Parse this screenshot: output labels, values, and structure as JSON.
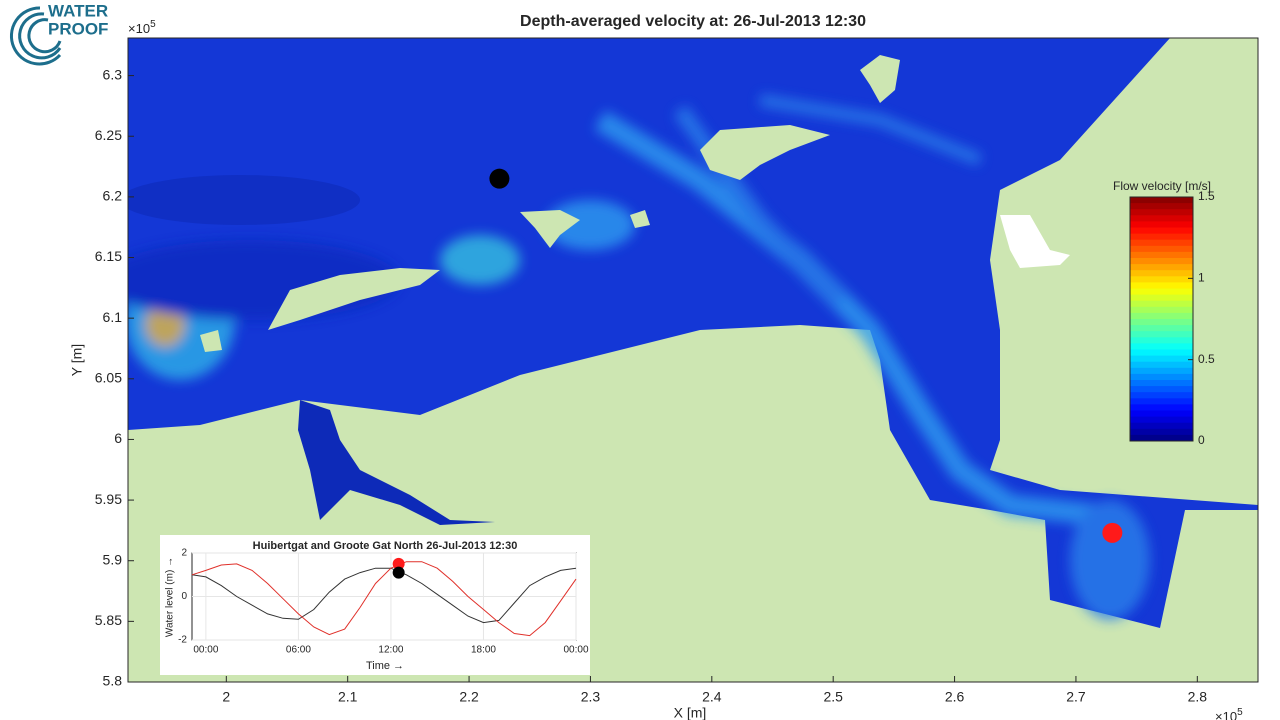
{
  "logo": {
    "line1": "WATER",
    "line2": "PROOF"
  },
  "chart_data": [
    {
      "type": "map",
      "title": "Depth-averaged velocity at: 26-Jul-2013 12:30",
      "xlabel": "X [m]",
      "ylabel": "Y [m]",
      "axis_exponent": {
        "base": "×10",
        "power": "5"
      },
      "xlim": [
        1.919,
        2.85
      ],
      "ylim": [
        5.8,
        6.331
      ],
      "xticks": [
        2,
        2.1,
        2.2,
        2.3,
        2.4,
        2.5,
        2.6,
        2.7,
        2.8
      ],
      "yticks": [
        5.8,
        5.85,
        5.9,
        5.95,
        6,
        6.05,
        6.1,
        6.15,
        6.2,
        6.25,
        6.3
      ],
      "series": [
        {
          "color": "#000000",
          "x": [
            2.225
          ],
          "y": [
            6.215
          ]
        },
        {
          "color": "#ff1a1a",
          "x": [
            2.73
          ],
          "y": [
            5.923
          ]
        }
      ],
      "colorbar": {
        "label": "Flow velocity [m/s]",
        "lim": [
          0,
          1.5
        ],
        "ticks": [
          0,
          0.5,
          1,
          1.5
        ],
        "colormap": "jet"
      }
    },
    {
      "type": "line",
      "title": "Huibertgat and Groote Gat North 26-Jul-2013 12:30",
      "xlabel": "Time →",
      "ylabel": "Water level (m) →",
      "xlim": [
        -0.9,
        24
      ],
      "ylim": [
        -2,
        2
      ],
      "xticks": [
        {
          "value": 0,
          "label": "00:00"
        },
        {
          "value": 6,
          "label": "06:00"
        },
        {
          "value": 12,
          "label": "12:00"
        },
        {
          "value": 18,
          "label": "18:00"
        },
        {
          "value": 24,
          "label": "00:00"
        }
      ],
      "yticks": [
        -2,
        0,
        2
      ],
      "x": [
        -0.9,
        0,
        1,
        2,
        3,
        4,
        5,
        6,
        7,
        8,
        9,
        10,
        11,
        12,
        13,
        14,
        15,
        16,
        17,
        18,
        19,
        20,
        21,
        22,
        23,
        24
      ],
      "series": [
        {
          "color": "#333333",
          "values": [
            1.0,
            0.9,
            0.5,
            0.0,
            -0.4,
            -0.8,
            -1.0,
            -1.05,
            -0.6,
            0.2,
            0.8,
            1.1,
            1.3,
            1.3,
            1.0,
            0.6,
            0.1,
            -0.4,
            -0.9,
            -1.2,
            -1.1,
            -0.3,
            0.5,
            0.9,
            1.2,
            1.3
          ]
        },
        {
          "color": "#e0302a",
          "values": [
            1.0,
            1.2,
            1.45,
            1.5,
            1.2,
            0.6,
            -0.1,
            -0.8,
            -1.4,
            -1.75,
            -1.5,
            -0.5,
            0.6,
            1.3,
            1.6,
            1.6,
            1.3,
            0.7,
            0.0,
            -0.6,
            -1.2,
            -1.7,
            -1.8,
            -1.2,
            -0.2,
            0.8
          ]
        }
      ],
      "markers": [
        {
          "color": "#ff1a1a",
          "x": 12.5,
          "y": 1.5
        },
        {
          "color": "#000000",
          "x": 12.5,
          "y": 1.1
        }
      ]
    }
  ]
}
